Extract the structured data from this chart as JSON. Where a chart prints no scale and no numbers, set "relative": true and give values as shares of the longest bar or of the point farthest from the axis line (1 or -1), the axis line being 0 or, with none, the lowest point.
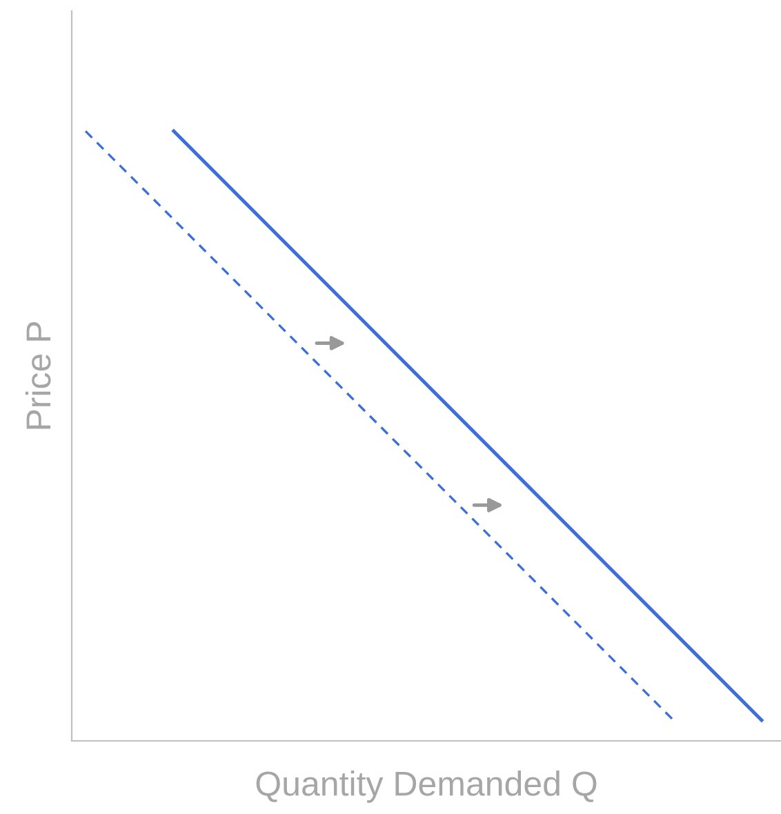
{
  "chart_data": {
    "type": "line",
    "xlabel": "Quantity Demanded Q",
    "ylabel": "Price P",
    "relative": true,
    "categories": [
      null,
      null,
      null,
      null,
      null,
      null,
      null,
      null,
      null,
      null,
      null,
      null,
      null,
      null,
      null,
      null,
      null,
      null,
      null,
      null,
      null,
      null,
      null,
      null
    ],
    "series": [
      {
        "color": "#3e6fd8",
        "line_style": "dashed",
        "values": [
          1,
          null,
          null,
          null,
          null,
          null,
          null,
          null,
          null,
          null,
          null,
          null,
          null,
          null,
          null,
          null,
          null,
          null,
          null,
          null,
          0.034,
          null,
          null,
          null
        ]
      },
      {
        "color": "#3e6fd8",
        "line_style": "solid",
        "values": [
          null,
          null,
          null,
          1,
          null,
          null,
          null,
          null,
          null,
          null,
          null,
          null,
          null,
          null,
          null,
          null,
          null,
          null,
          null,
          null,
          null,
          null,
          null,
          0.034
        ]
      }
    ]
  }
}
